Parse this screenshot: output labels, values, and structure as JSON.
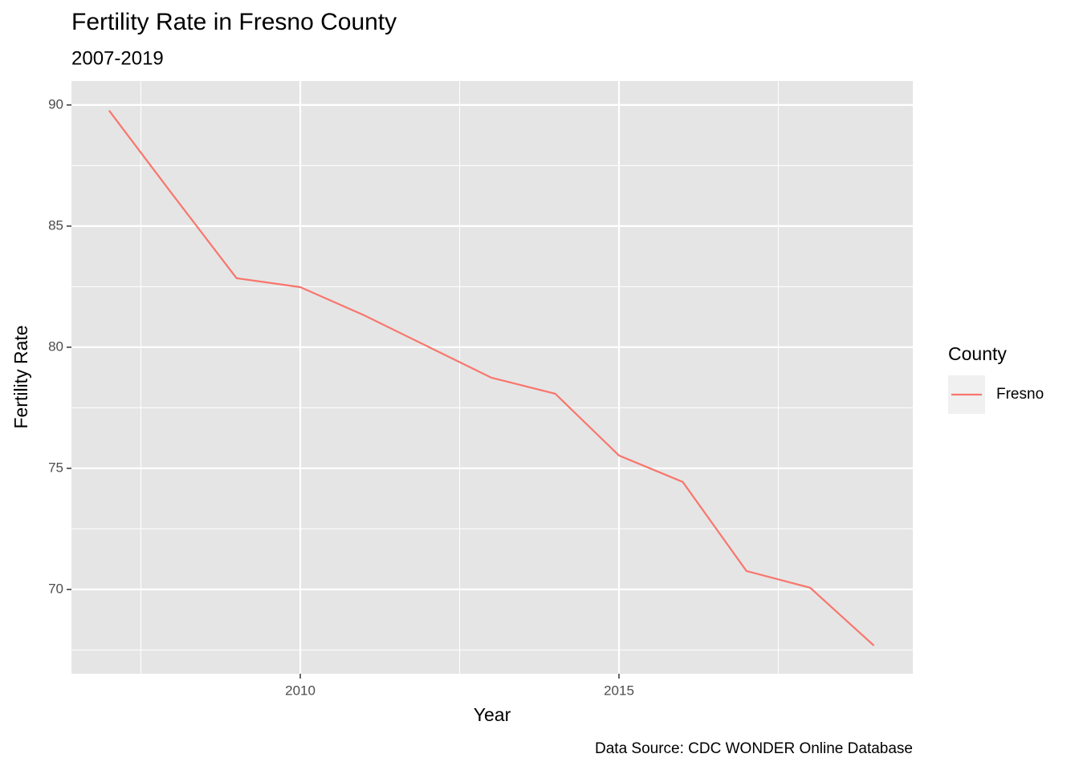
{
  "chart_data": {
    "type": "line",
    "title": "Fertility Rate in Fresno County",
    "subtitle": "2007-2019",
    "x_label": "Year",
    "y_label": "Fertility Rate",
    "caption": "Data Source: CDC WONDER Online Database",
    "legend_title": "County",
    "legend_position": "right",
    "x": [
      2007,
      2008,
      2009,
      2010,
      2011,
      2012,
      2013,
      2014,
      2015,
      2016,
      2017,
      2018,
      2019
    ],
    "series": [
      {
        "name": "Fresno",
        "color": "#f8766d",
        "values": [
          89.77,
          86.29,
          82.85,
          82.48,
          81.32,
          80.03,
          78.74,
          78.08,
          75.53,
          74.44,
          70.76,
          70.07,
          67.68
        ]
      }
    ],
    "xlim": [
      2006.41,
      2019.61
    ],
    "ylim": [
      66.52,
      90.99
    ],
    "xticks": [
      2010,
      2015
    ],
    "yticks": [
      70,
      75,
      80,
      85,
      90
    ],
    "x_minor_ticks": [
      2007.5,
      2012.5,
      2017.5
    ],
    "y_minor_ticks": [
      67.5,
      72.5,
      77.5,
      82.5,
      87.5
    ],
    "grid": true
  }
}
